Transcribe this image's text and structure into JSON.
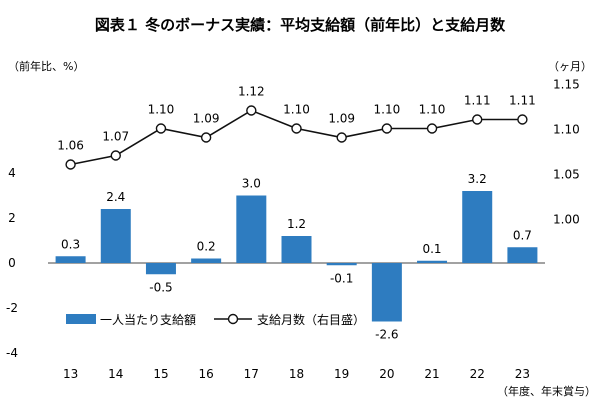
{
  "chart_data": {
    "type": "bar+line",
    "title": "図表１ 冬のボーナス実績：平均支給額（前年比）と支給月数",
    "left_axis_unit": "（前年比、%）",
    "right_axis_unit": "（ヶ月）",
    "x_axis_note": "（年度、年末賞与）",
    "categories": [
      "13",
      "14",
      "15",
      "16",
      "17",
      "18",
      "19",
      "20",
      "21",
      "22",
      "23"
    ],
    "left_ylim": [
      -4,
      5
    ],
    "left_ticks": [
      "4",
      "2",
      "0",
      "-2",
      "-4"
    ],
    "left_tick_values": [
      4,
      2,
      0,
      -2,
      -4
    ],
    "right_ylim": [
      0.85,
      1.15
    ],
    "right_ticks": [
      "1.15",
      "1.10",
      "1.05",
      "1.00"
    ],
    "right_tick_values": [
      1.15,
      1.1,
      1.05,
      1.0
    ],
    "series": [
      {
        "name": "一人当たり支給額",
        "kind": "bar",
        "axis": "left",
        "color": "#2e7cc0",
        "values": [
          0.3,
          2.4,
          -0.5,
          0.2,
          3.0,
          1.2,
          -0.1,
          -2.6,
          0.1,
          3.2,
          0.7
        ],
        "labels": [
          "0.3",
          "2.4",
          "-0.5",
          "0.2",
          "3.0",
          "1.2",
          "-0.1",
          "-2.6",
          "0.1",
          "3.2",
          "0.7"
        ]
      },
      {
        "name": "支給月数（右目盛）",
        "kind": "line",
        "axis": "right",
        "color": "#111111",
        "values": [
          1.06,
          1.07,
          1.1,
          1.09,
          1.12,
          1.1,
          1.09,
          1.1,
          1.1,
          1.11,
          1.11
        ],
        "labels": [
          "1.06",
          "1.07",
          "1.10",
          "1.09",
          "1.12",
          "1.10",
          "1.09",
          "1.10",
          "1.10",
          "1.11",
          "1.11"
        ]
      }
    ]
  }
}
